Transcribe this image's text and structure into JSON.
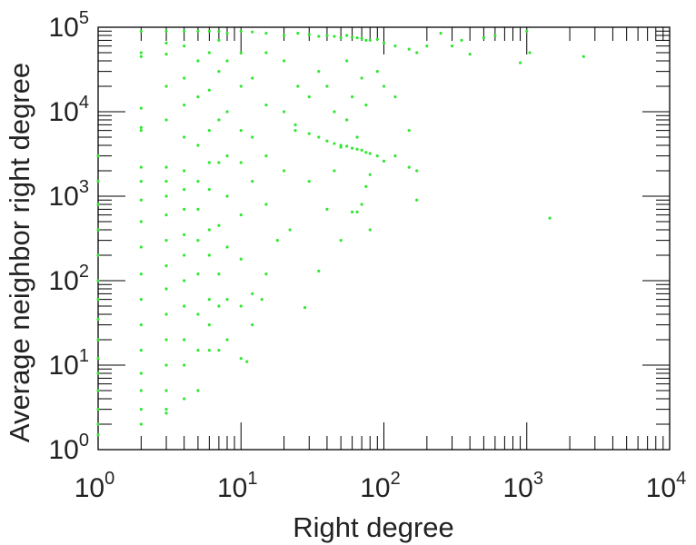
{
  "chart_data": {
    "type": "scatter",
    "title": "",
    "xlabel": "Right degree",
    "ylabel": "Average neighbor right degree",
    "x_scale": "log",
    "y_scale": "log",
    "xlim": [
      1,
      10000
    ],
    "ylim": [
      1,
      100000
    ],
    "x_ticks": [
      {
        "base": "10",
        "exp": "0"
      },
      {
        "base": "10",
        "exp": "1"
      },
      {
        "base": "10",
        "exp": "2"
      },
      {
        "base": "10",
        "exp": "3"
      },
      {
        "base": "10",
        "exp": "4"
      }
    ],
    "y_ticks": [
      {
        "base": "10",
        "exp": "0"
      },
      {
        "base": "10",
        "exp": "1"
      },
      {
        "base": "10",
        "exp": "2"
      },
      {
        "base": "10",
        "exp": "3"
      },
      {
        "base": "10",
        "exp": "4"
      },
      {
        "base": "10",
        "exp": "5"
      }
    ],
    "grid": false,
    "legend": false,
    "marker_color": "#33e633",
    "series": [
      {
        "points": [
          [
            1,
            1.5
          ],
          [
            1,
            2
          ],
          [
            1,
            3
          ],
          [
            1,
            5
          ],
          [
            1,
            8
          ],
          [
            1,
            12
          ],
          [
            1,
            20
          ],
          [
            1,
            35
          ],
          [
            1,
            60
          ],
          [
            1,
            100
          ],
          [
            1,
            200
          ],
          [
            1,
            400
          ],
          [
            1,
            800
          ],
          [
            1,
            1500
          ],
          [
            1,
            3000
          ],
          [
            2,
            2
          ],
          [
            2,
            3
          ],
          [
            2,
            5
          ],
          [
            2,
            8
          ],
          [
            2,
            15
          ],
          [
            2,
            30
          ],
          [
            2,
            60
          ],
          [
            2,
            120
          ],
          [
            2,
            250
          ],
          [
            2,
            500
          ],
          [
            2,
            900
          ],
          [
            2,
            1500
          ],
          [
            2,
            2200
          ],
          [
            2,
            6000
          ],
          [
            2,
            6500
          ],
          [
            2,
            11000
          ],
          [
            2,
            45000
          ],
          [
            2,
            50000
          ],
          [
            2,
            90000
          ],
          [
            3,
            2.7
          ],
          [
            3,
            3
          ],
          [
            3,
            5
          ],
          [
            3,
            10
          ],
          [
            3,
            20
          ],
          [
            3,
            40
          ],
          [
            3,
            80
          ],
          [
            3,
            150
          ],
          [
            3,
            300
          ],
          [
            3,
            600
          ],
          [
            3,
            1000
          ],
          [
            3,
            1500
          ],
          [
            3,
            2200
          ],
          [
            3,
            8000
          ],
          [
            3,
            20000
          ],
          [
            3,
            48000
          ],
          [
            3,
            65000
          ],
          [
            3,
            90000
          ],
          [
            4,
            4
          ],
          [
            4,
            10
          ],
          [
            4,
            20
          ],
          [
            4,
            50
          ],
          [
            4,
            100
          ],
          [
            4,
            200
          ],
          [
            4,
            350
          ],
          [
            4,
            700
          ],
          [
            4,
            1200
          ],
          [
            4,
            2000
          ],
          [
            4,
            5000
          ],
          [
            4,
            12000
          ],
          [
            4,
            25000
          ],
          [
            4,
            60000
          ],
          [
            4,
            90000
          ],
          [
            5,
            5
          ],
          [
            5,
            15
          ],
          [
            5,
            40
          ],
          [
            5,
            120
          ],
          [
            5,
            300
          ],
          [
            5,
            700
          ],
          [
            5,
            1500
          ],
          [
            5,
            4000
          ],
          [
            5,
            15000
          ],
          [
            5,
            40000
          ],
          [
            5,
            90000
          ],
          [
            6,
            15
          ],
          [
            6,
            30
          ],
          [
            6,
            60
          ],
          [
            6,
            200
          ],
          [
            6,
            400
          ],
          [
            6,
            1200
          ],
          [
            6,
            2500
          ],
          [
            6,
            6000
          ],
          [
            6,
            18000
          ],
          [
            6,
            50000
          ],
          [
            6,
            90000
          ],
          [
            7,
            15
          ],
          [
            7,
            50
          ],
          [
            7,
            120
          ],
          [
            7,
            450
          ],
          [
            7,
            2500
          ],
          [
            7,
            8000
          ],
          [
            7,
            30000
          ],
          [
            7,
            70000
          ],
          [
            7,
            90000
          ],
          [
            8,
            20
          ],
          [
            8,
            60
          ],
          [
            8,
            250
          ],
          [
            8,
            1000
          ],
          [
            8,
            3000
          ],
          [
            8,
            10000
          ],
          [
            8,
            40000
          ],
          [
            8,
            85000
          ],
          [
            10,
            12
          ],
          [
            10,
            50
          ],
          [
            10,
            180
          ],
          [
            10,
            600
          ],
          [
            10,
            2500
          ],
          [
            10,
            6000
          ],
          [
            10,
            20000
          ],
          [
            10,
            50000
          ],
          [
            10,
            90000
          ],
          [
            11,
            11
          ],
          [
            12,
            30
          ],
          [
            12,
            70
          ],
          [
            12,
            1500
          ],
          [
            12,
            5000
          ],
          [
            12,
            25000
          ],
          [
            12,
            88000
          ],
          [
            14,
            60
          ],
          [
            15,
            120
          ],
          [
            15,
            800
          ],
          [
            15,
            3000
          ],
          [
            15,
            12000
          ],
          [
            15,
            50000
          ],
          [
            15,
            85000
          ],
          [
            18,
            300
          ],
          [
            20,
            2000
          ],
          [
            20,
            10000
          ],
          [
            20,
            40000
          ],
          [
            20,
            80000
          ],
          [
            22,
            400
          ],
          [
            24,
            6000
          ],
          [
            24,
            7000
          ],
          [
            25,
            85000
          ],
          [
            25,
            20000
          ],
          [
            28,
            48
          ],
          [
            30,
            1500
          ],
          [
            30,
            5500
          ],
          [
            30,
            15000
          ],
          [
            30,
            82000
          ],
          [
            35,
            130
          ],
          [
            35,
            5000
          ],
          [
            35,
            30000
          ],
          [
            35,
            78000
          ],
          [
            40,
            4500
          ],
          [
            40,
            700
          ],
          [
            40,
            80000
          ],
          [
            40,
            20000
          ],
          [
            45,
            4200
          ],
          [
            45,
            2000
          ],
          [
            45,
            78000
          ],
          [
            45,
            10000
          ],
          [
            50,
            4000
          ],
          [
            50,
            3800
          ],
          [
            50,
            75000
          ],
          [
            50,
            300
          ],
          [
            55,
            3900
          ],
          [
            55,
            8000
          ],
          [
            55,
            80000
          ],
          [
            55,
            40000
          ],
          [
            60,
            3700
          ],
          [
            60,
            650
          ],
          [
            60,
            76000
          ],
          [
            60,
            15000
          ],
          [
            65,
            3600
          ],
          [
            65,
            650
          ],
          [
            65,
            75000
          ],
          [
            65,
            5000
          ],
          [
            70,
            3500
          ],
          [
            70,
            800
          ],
          [
            70,
            74000
          ],
          [
            70,
            25000
          ],
          [
            75,
            3300
          ],
          [
            75,
            1300
          ],
          [
            75,
            70000
          ],
          [
            75,
            12000
          ],
          [
            80,
            3200
          ],
          [
            80,
            1800
          ],
          [
            80,
            70000
          ],
          [
            80,
            400
          ],
          [
            90,
            3000
          ],
          [
            90,
            72000
          ],
          [
            90,
            30000
          ],
          [
            100,
            2600
          ],
          [
            100,
            65000
          ],
          [
            100,
            20000
          ],
          [
            120,
            3000
          ],
          [
            120,
            60000
          ],
          [
            120,
            15000
          ],
          [
            150,
            2200
          ],
          [
            150,
            55000
          ],
          [
            150,
            6000
          ],
          [
            170,
            2000
          ],
          [
            170,
            900
          ],
          [
            170,
            50000
          ],
          [
            200,
            60000
          ],
          [
            250,
            85000
          ],
          [
            300,
            60000
          ],
          [
            350,
            70000
          ],
          [
            400,
            48000
          ],
          [
            500,
            75000
          ],
          [
            600,
            80000
          ],
          [
            900,
            38000
          ],
          [
            1000,
            90000
          ],
          [
            1050,
            50000
          ],
          [
            1450,
            550
          ],
          [
            2500,
            45000
          ]
        ]
      }
    ]
  }
}
